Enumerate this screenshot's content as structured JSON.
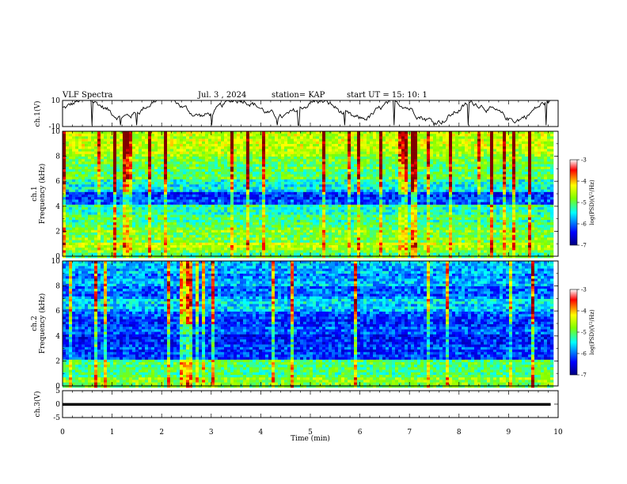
{
  "header": {
    "title": "VLF Spectra",
    "date": "Jul. 3 , 2024",
    "station": "station= KAP",
    "start": "start UT =  15: 10: 1"
  },
  "chart_data": [
    {
      "type": "line",
      "ylabel": "ch.1(V)",
      "ylim": [
        -10,
        10
      ],
      "yticks": [
        "10",
        "-10"
      ],
      "xlim": [
        0,
        10
      ]
    },
    {
      "type": "heatmap",
      "ylabel": "ch.1\nFrequency (kHz)",
      "ylim": [
        0,
        10
      ],
      "yticks": [
        "0",
        "2",
        "4",
        "6",
        "8",
        "10"
      ],
      "xlim": [
        0,
        10
      ],
      "colorbar": {
        "label": "log(PSD)(V²/Hz)",
        "ticks": [
          "-3",
          "-4",
          "-5",
          "-6",
          "-7"
        ],
        "range": [
          -7,
          -3
        ]
      }
    },
    {
      "type": "heatmap",
      "ylabel": "ch.2\nFrequency (kHz)",
      "ylim": [
        0,
        10
      ],
      "yticks": [
        "0",
        "2",
        "4",
        "6",
        "8",
        "10"
      ],
      "xlim": [
        0,
        10
      ],
      "colorbar": {
        "label": "log(PSD)(V²/Hz)",
        "ticks": [
          "-3",
          "-4",
          "-5",
          "-6",
          "-7"
        ],
        "range": [
          -7,
          -3
        ]
      }
    },
    {
      "type": "line",
      "ylabel": "ch.3(V)",
      "ylim": [
        -5,
        5
      ],
      "yticks": [
        "5",
        "0",
        "-5"
      ],
      "xlim": [
        0,
        10
      ],
      "xlabel": "Time (min)",
      "xticks": [
        "0",
        "1",
        "2",
        "3",
        "4",
        "5",
        "6",
        "7",
        "8",
        "9",
        "10"
      ]
    }
  ],
  "colors": {
    "scale": [
      "#00007f",
      "#0000ff",
      "#00ffff",
      "#7fff00",
      "#ffff00",
      "#ff0000",
      "#7f0000"
    ]
  }
}
